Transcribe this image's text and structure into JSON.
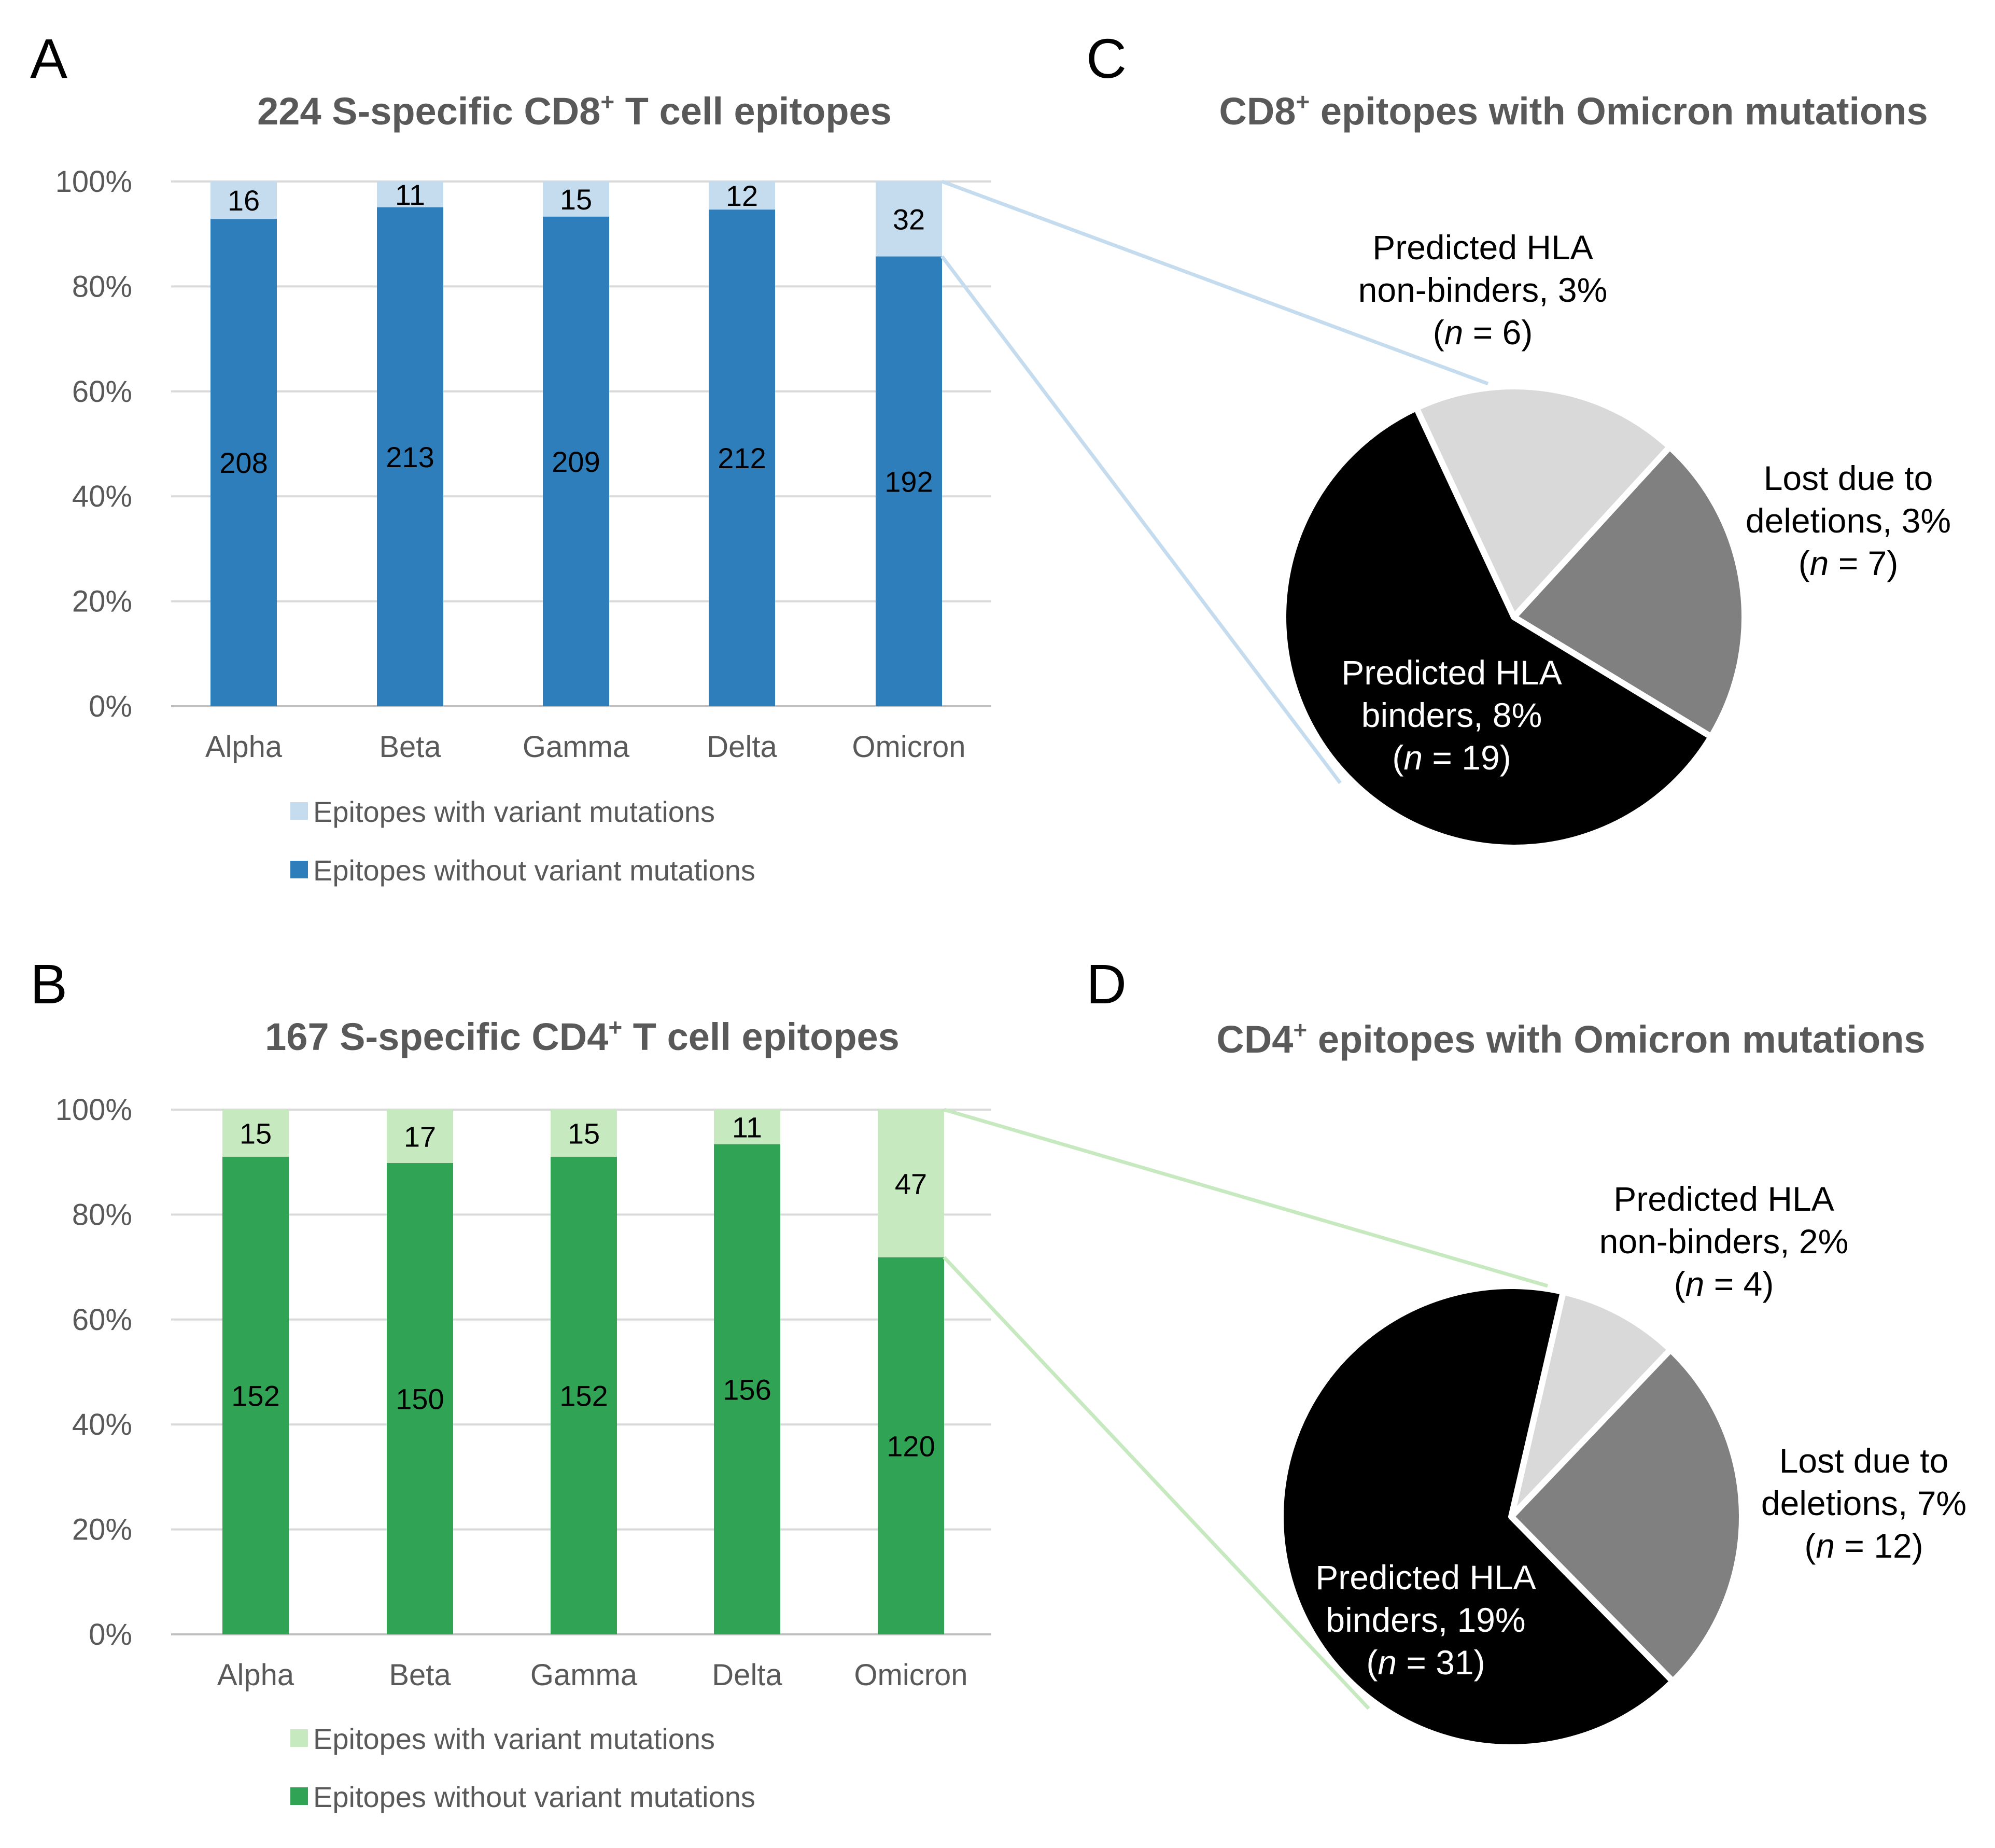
{
  "panels": {
    "A": "A",
    "B": "B",
    "C": "C",
    "D": "D"
  },
  "colors": {
    "cd8_dark": "#2e7ebc",
    "cd8_light": "#c5dcef",
    "cd4_dark": "#31a354",
    "cd4_light": "#c7e9c0",
    "pie_black": "#000000",
    "pie_gray": "#808080",
    "pie_light": "#d9d9d9",
    "axis_text": "#595959",
    "grid": "#d9d9d9"
  },
  "chart_data": [
    {
      "id": "A",
      "type": "bar",
      "stacked": "percent",
      "title_prefix": "224 S-specific CD8",
      "title_sup": "+",
      "title_suffix": " T cell epitopes",
      "categories": [
        "Alpha",
        "Beta",
        "Gamma",
        "Delta",
        "Omicron"
      ],
      "series": [
        {
          "name": "Epitopes without variant mutations",
          "values": [
            208,
            213,
            209,
            212,
            192
          ],
          "color": "#2e7ebc"
        },
        {
          "name": "Epitopes with variant mutations",
          "values": [
            16,
            11,
            15,
            12,
            32
          ],
          "color": "#c5dcef"
        }
      ],
      "ylim": [
        0,
        100
      ],
      "yticks": [
        "0%",
        "20%",
        "40%",
        "60%",
        "80%",
        "100%"
      ],
      "grid": true,
      "legend": [
        "Epitopes with variant mutations",
        "Epitopes without variant mutations"
      ],
      "legend_position": "bottom"
    },
    {
      "id": "B",
      "type": "bar",
      "stacked": "percent",
      "title_prefix": "167 S-specific CD4",
      "title_sup": "+",
      "title_suffix": " T cell epitopes",
      "categories": [
        "Alpha",
        "Beta",
        "Gamma",
        "Delta",
        "Omicron"
      ],
      "series": [
        {
          "name": "Epitopes without variant mutations",
          "values": [
            152,
            150,
            152,
            156,
            120
          ],
          "color": "#31a354"
        },
        {
          "name": "Epitopes with variant mutations",
          "values": [
            15,
            17,
            15,
            11,
            47
          ],
          "color": "#c7e9c0"
        }
      ],
      "ylim": [
        0,
        100
      ],
      "yticks": [
        "0%",
        "20%",
        "40%",
        "60%",
        "80%",
        "100%"
      ],
      "grid": true,
      "legend": [
        "Epitopes with variant mutations",
        "Epitopes without variant mutations"
      ],
      "legend_position": "bottom"
    },
    {
      "id": "C",
      "type": "pie",
      "title_prefix": "CD8",
      "title_sup": "+",
      "title_suffix": " epitopes with Omicron mutations",
      "slices": [
        {
          "label_lines": [
            "Predicted HLA",
            "non-binders, 3%",
            "(n = 6)"
          ],
          "value": 6,
          "color": "#d9d9d9"
        },
        {
          "label_lines": [
            "Lost due to",
            "deletions, 3%",
            "(n = 7)"
          ],
          "value": 7,
          "color": "#808080"
        },
        {
          "label_lines": [
            "Predicted HLA",
            "binders, 8%",
            "(n = 19)"
          ],
          "value": 19,
          "color": "#000000"
        }
      ]
    },
    {
      "id": "D",
      "type": "pie",
      "title_prefix": "CD4",
      "title_sup": "+",
      "title_suffix": " epitopes with Omicron mutations",
      "slices": [
        {
          "label_lines": [
            "Predicted HLA",
            "non-binders, 2%",
            "(n = 4)"
          ],
          "value": 4,
          "color": "#d9d9d9"
        },
        {
          "label_lines": [
            "Lost due to",
            "deletions, 7%",
            "(n = 12)"
          ],
          "value": 12,
          "color": "#808080"
        },
        {
          "label_lines": [
            "Predicted HLA",
            "binders, 19%",
            "(n = 31)"
          ],
          "value": 31,
          "color": "#000000"
        }
      ]
    }
  ]
}
